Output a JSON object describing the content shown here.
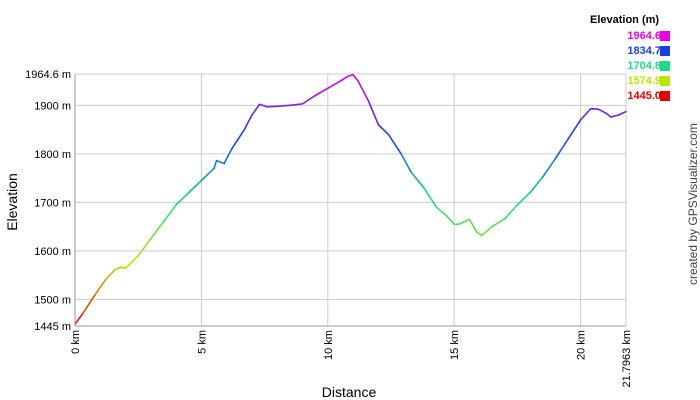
{
  "chart_data": {
    "type": "line",
    "xlabel": "Distance",
    "ylabel": "Elevation",
    "xlim": [
      0,
      21.7963
    ],
    "ylim": [
      1445.0,
      1964.6
    ],
    "y_ticks": [
      {
        "v": 1964.6,
        "label": "1964.6 m"
      },
      {
        "v": 1900,
        "label": "1900 m"
      },
      {
        "v": 1800,
        "label": "1800 m"
      },
      {
        "v": 1700,
        "label": "1700 m"
      },
      {
        "v": 1600,
        "label": "1600 m"
      },
      {
        "v": 1500,
        "label": "1500 m"
      },
      {
        "v": 1445,
        "label": "1445 m"
      }
    ],
    "x_ticks": [
      {
        "v": 0,
        "label": "0 km"
      },
      {
        "v": 5,
        "label": "5 km"
      },
      {
        "v": 10,
        "label": "10 km"
      },
      {
        "v": 15,
        "label": "15 km"
      },
      {
        "v": 20,
        "label": "20 km"
      },
      {
        "v": 21.7963,
        "label": "21.7963 km"
      }
    ],
    "grid": true,
    "x": [
      0,
      0.3,
      0.8,
      1.2,
      1.6,
      1.8,
      2.0,
      2.5,
      3.0,
      3.5,
      4.0,
      4.5,
      5.0,
      5.5,
      5.6,
      5.9,
      6.2,
      6.7,
      7.0,
      7.3,
      7.6,
      8.0,
      8.5,
      9.0,
      9.5,
      10.0,
      10.5,
      10.8,
      11.0,
      11.2,
      11.6,
      12.0,
      12.4,
      12.9,
      13.3,
      13.8,
      14.3,
      14.7,
      15.0,
      15.2,
      15.6,
      15.9,
      16.1,
      16.5,
      17.0,
      17.5,
      18.0,
      18.5,
      19.0,
      19.5,
      20.0,
      20.4,
      20.7,
      21.0,
      21.2,
      21.5,
      21.7963
    ],
    "y": [
      1449,
      1470,
      1510,
      1540,
      1562,
      1566,
      1564,
      1590,
      1625,
      1660,
      1695,
      1720,
      1745,
      1770,
      1786,
      1780,
      1810,
      1850,
      1880,
      1902,
      1897,
      1898,
      1900,
      1903,
      1920,
      1935,
      1950,
      1960,
      1963,
      1950,
      1910,
      1860,
      1840,
      1800,
      1762,
      1730,
      1690,
      1672,
      1655,
      1655,
      1665,
      1638,
      1632,
      1650,
      1666,
      1695,
      1720,
      1752,
      1790,
      1830,
      1870,
      1893,
      1892,
      1884,
      1876,
      1880,
      1887
    ]
  },
  "legend": {
    "title": "Elevation (m)",
    "entries": [
      {
        "label": "1964.6",
        "color": "#e600e6"
      },
      {
        "label": "1834.7",
        "color": "#1a3ee6"
      },
      {
        "label": "1704.8",
        "color": "#22d88a"
      },
      {
        "label": "1574.9",
        "color": "#b8e600"
      },
      {
        "label": "1445.0",
        "color": "#e00000"
      }
    ]
  },
  "credit": "created by GPSVisualizer.com"
}
